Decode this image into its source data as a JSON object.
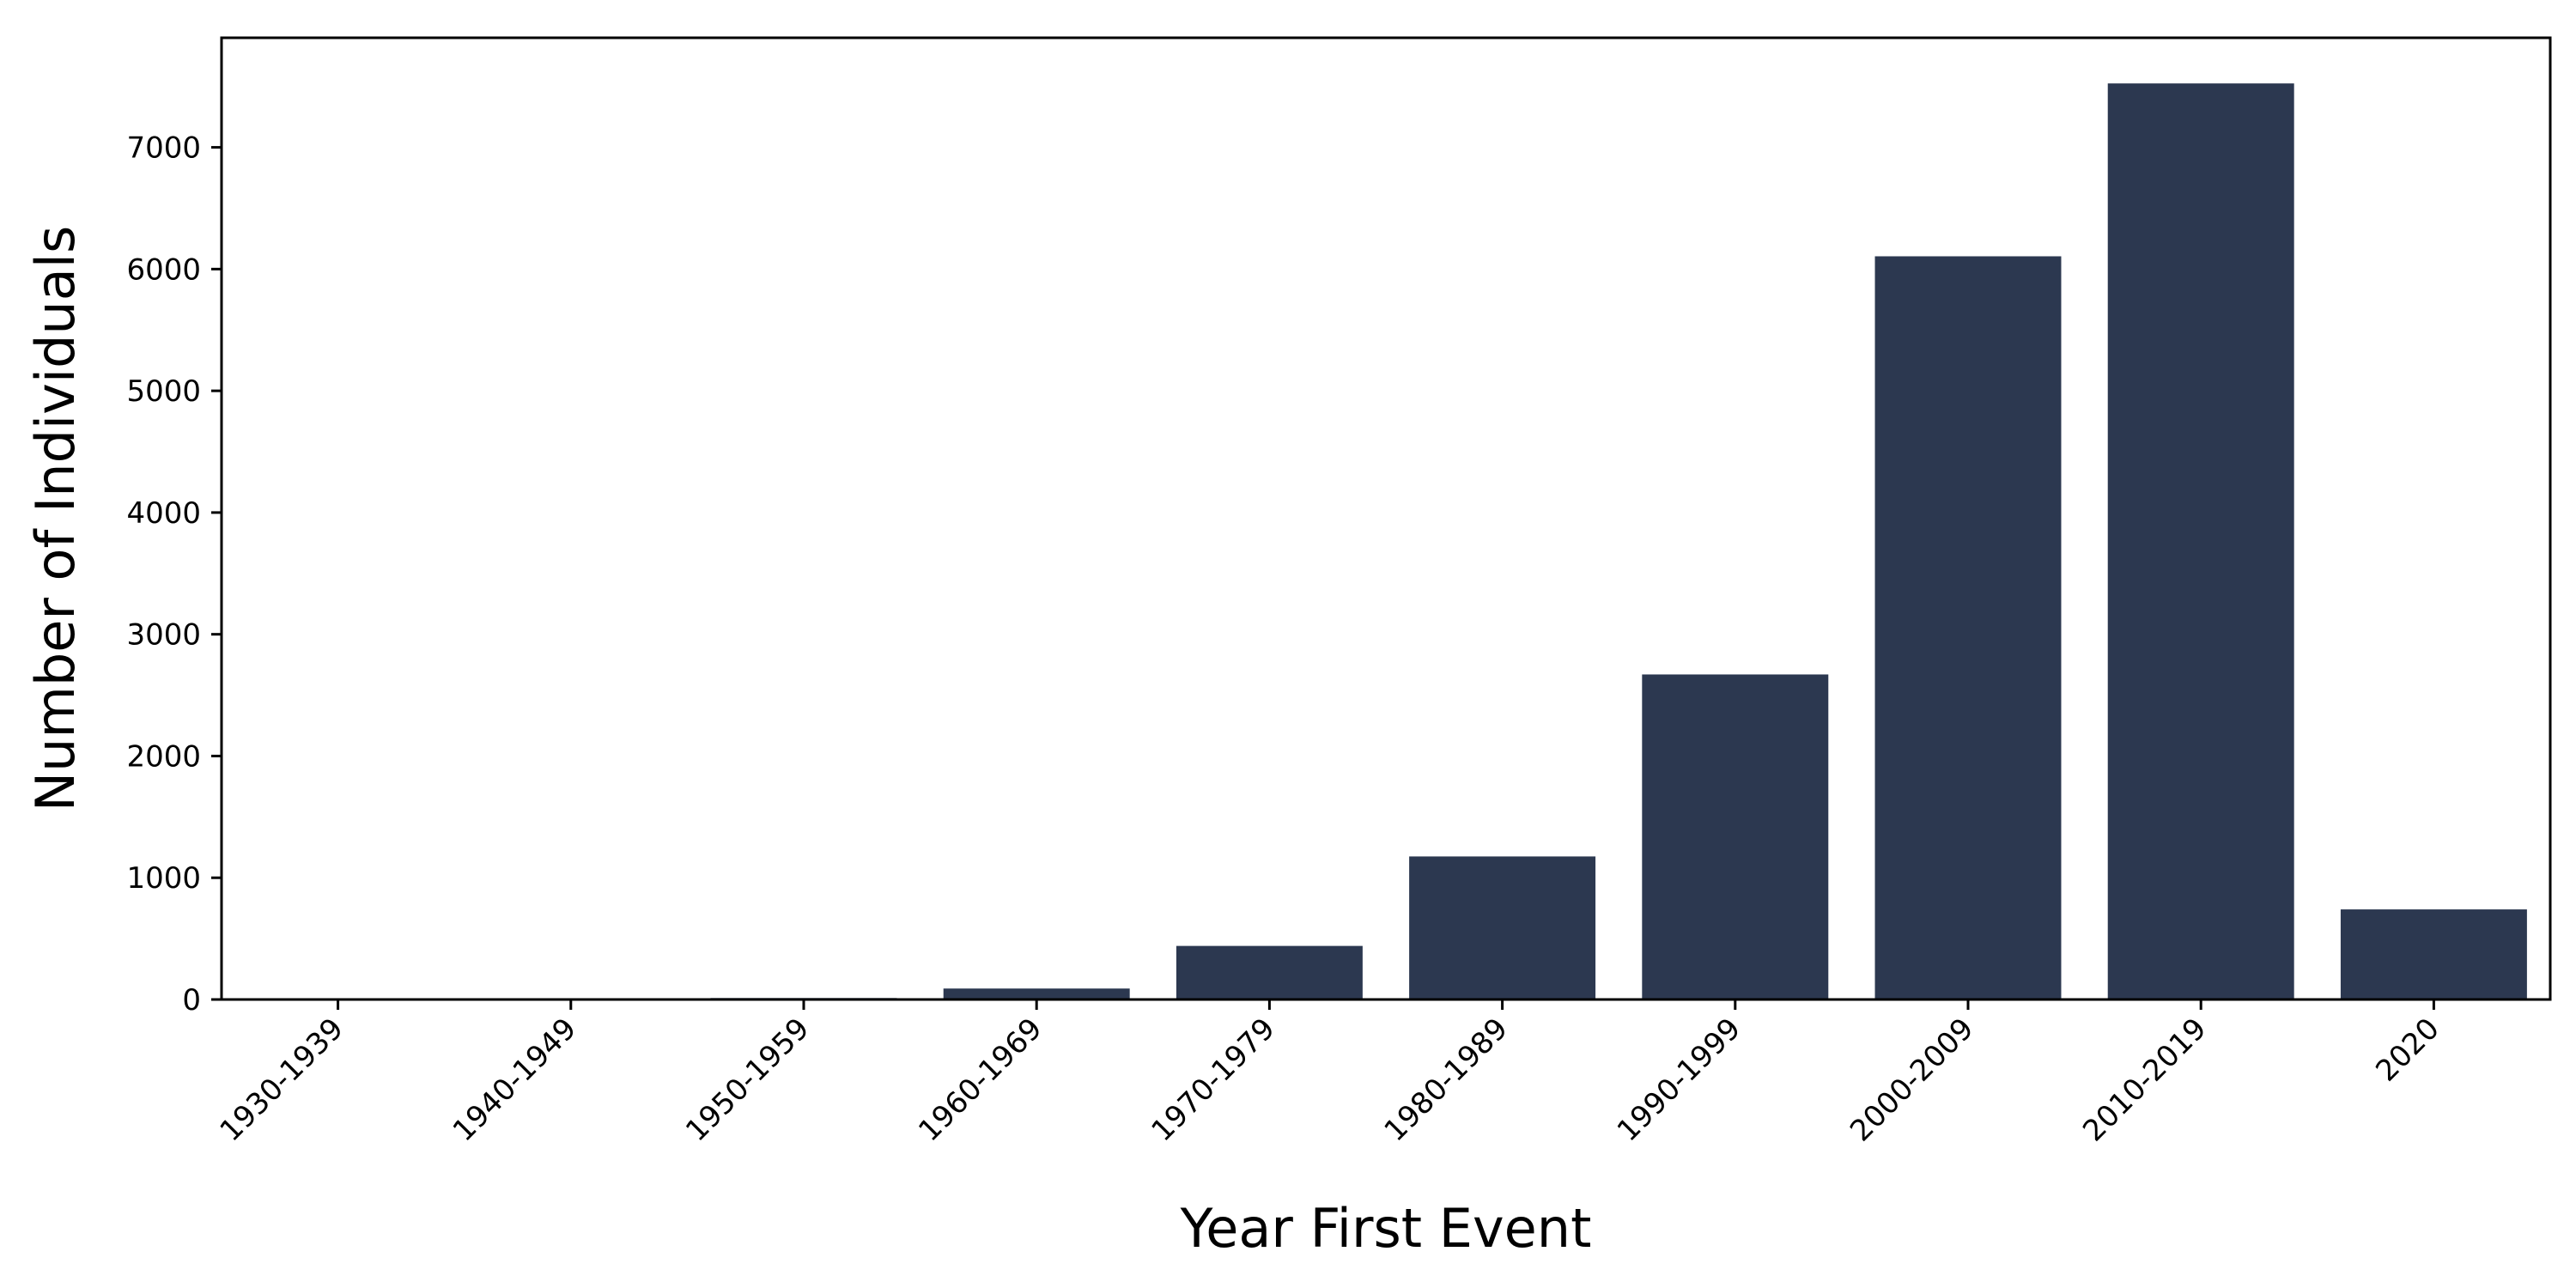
{
  "chart_data": {
    "type": "bar",
    "title": "",
    "xlabel": "Year First Event",
    "ylabel": "Number of Individuals",
    "categories": [
      "1930-1939",
      "1940-1949",
      "1950-1959",
      "1960-1969",
      "1970-1979",
      "1980-1989",
      "1990-1999",
      "2000-2009",
      "2010-2019",
      "2020"
    ],
    "values": [
      2,
      3,
      12,
      90,
      440,
      1175,
      2670,
      6105,
      7525,
      740
    ],
    "ylim": [
      0,
      7900
    ],
    "yticks": [
      0,
      1000,
      2000,
      3000,
      4000,
      5000,
      6000,
      7000
    ],
    "ytick_labels": [
      "0",
      "1000",
      "2000",
      "3000",
      "4000",
      "5000",
      "6000",
      "7000"
    ],
    "grid": false,
    "legend": "none",
    "bar_color": "#2c3850"
  }
}
